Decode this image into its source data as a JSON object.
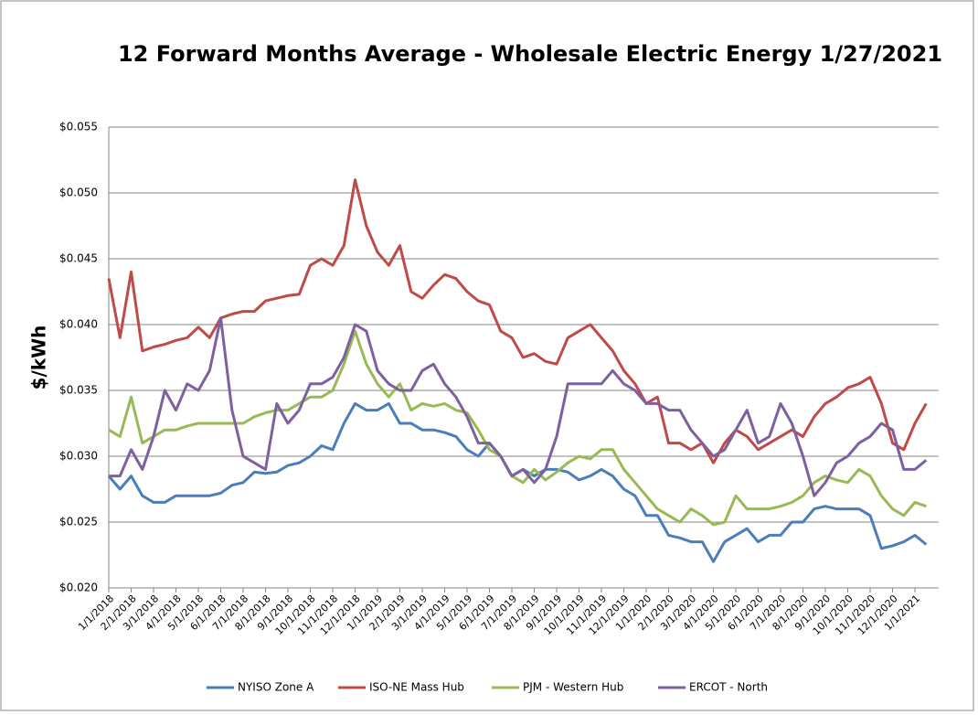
{
  "chart_data": {
    "type": "line",
    "title": "12 Forward Months Average - Wholesale Electric Energy 1/27/2021",
    "y_label": "$/kWh",
    "categories": [
      "1/1/2018",
      null,
      "2/1/2018",
      null,
      "3/1/2018",
      null,
      "4/1/2018",
      null,
      "5/1/2018",
      null,
      "6/1/2018",
      null,
      "7/1/2018",
      null,
      "8/1/2018",
      null,
      "9/1/2018",
      null,
      "10/1/2018",
      null,
      "11/1/2018",
      null,
      "12/1/2018",
      null,
      "1/1/2019",
      null,
      "2/1/2019",
      null,
      "3/1/2019",
      null,
      "4/1/2019",
      null,
      "5/1/2019",
      null,
      "6/1/2019",
      null,
      "7/1/2019",
      null,
      "8/1/2019",
      null,
      "9/1/2019",
      null,
      "10/1/2019",
      null,
      "11/1/2019",
      null,
      "12/1/2019",
      null,
      "1/1/2020",
      null,
      "2/1/2020",
      null,
      "3/1/2020",
      null,
      "4/1/2020",
      null,
      "5/1/2020",
      null,
      "6/1/2020",
      null,
      "7/1/2020",
      null,
      "8/1/2020",
      null,
      "9/1/2020",
      null,
      "10/1/2020",
      null,
      "11/1/2020",
      null,
      "12/1/2020",
      null,
      "1/1/2021",
      null
    ],
    "series": [
      {
        "name": "NYISO Zone A",
        "color": "#4a7ebb",
        "values": [
          0.0285,
          0.0275,
          0.0285,
          0.027,
          0.0265,
          0.0265,
          0.027,
          0.027,
          0.027,
          0.027,
          0.0272,
          0.0278,
          0.028,
          0.0288,
          0.0287,
          0.0288,
          0.0293,
          0.0295,
          0.03,
          0.0308,
          0.0305,
          0.0325,
          0.034,
          0.0335,
          0.0335,
          0.034,
          0.0325,
          0.0325,
          0.032,
          0.032,
          0.0318,
          0.0315,
          0.0305,
          0.03,
          0.031,
          0.03,
          0.0285,
          0.029,
          0.0285,
          0.029,
          0.029,
          0.0288,
          0.0282,
          0.0285,
          0.029,
          0.0285,
          0.0275,
          0.027,
          0.0255,
          0.0255,
          0.024,
          0.0238,
          0.0235,
          0.0235,
          0.022,
          0.0235,
          0.024,
          0.0245,
          0.0235,
          0.024,
          0.024,
          0.025,
          0.025,
          0.026,
          0.0262,
          0.026,
          0.026,
          0.026,
          0.0255,
          0.023,
          0.0232,
          0.0235,
          0.024,
          0.0233
        ]
      },
      {
        "name": "ISO-NE Mass Hub",
        "color": "#be4b48",
        "values": [
          0.0435,
          0.039,
          0.044,
          0.038,
          0.0383,
          0.0385,
          0.0388,
          0.039,
          0.0398,
          0.039,
          0.0405,
          0.0408,
          0.041,
          0.041,
          0.0418,
          0.042,
          0.0422,
          0.0423,
          0.0445,
          0.045,
          0.0445,
          0.046,
          0.051,
          0.0475,
          0.0455,
          0.0445,
          0.046,
          0.0425,
          0.042,
          0.043,
          0.0438,
          0.0435,
          0.0425,
          0.0418,
          0.0415,
          0.0395,
          0.039,
          0.0375,
          0.0378,
          0.0372,
          0.037,
          0.039,
          0.0395,
          0.04,
          0.039,
          0.038,
          0.0365,
          0.0355,
          0.034,
          0.0345,
          0.031,
          0.031,
          0.0305,
          0.031,
          0.0295,
          0.031,
          0.032,
          0.0315,
          0.0305,
          0.031,
          0.0315,
          0.032,
          0.0315,
          0.033,
          0.034,
          0.0345,
          0.0352,
          0.0355,
          0.036,
          0.034,
          0.031,
          0.0305,
          0.0325,
          0.034
        ]
      },
      {
        "name": "PJM - Western Hub",
        "color": "#98b954",
        "values": [
          0.032,
          0.0315,
          0.0345,
          0.031,
          0.0315,
          0.032,
          0.032,
          0.0323,
          0.0325,
          0.0325,
          0.0325,
          0.0325,
          0.0325,
          0.033,
          0.0333,
          0.0335,
          0.0335,
          0.034,
          0.0345,
          0.0345,
          0.035,
          0.037,
          0.0395,
          0.037,
          0.0355,
          0.0345,
          0.0355,
          0.0335,
          0.034,
          0.0338,
          0.034,
          0.0335,
          0.0333,
          0.032,
          0.0305,
          0.03,
          0.0285,
          0.028,
          0.029,
          0.0282,
          0.0288,
          0.0295,
          0.03,
          0.0298,
          0.0305,
          0.0305,
          0.029,
          0.028,
          0.027,
          0.026,
          0.0255,
          0.025,
          0.026,
          0.0255,
          0.0248,
          0.025,
          0.027,
          0.026,
          0.026,
          0.026,
          0.0262,
          0.0265,
          0.027,
          0.028,
          0.0285,
          0.0282,
          0.028,
          0.029,
          0.0285,
          0.027,
          0.026,
          0.0255,
          0.0265,
          0.0262
        ]
      },
      {
        "name": "ERCOT - North",
        "color": "#7d60a0",
        "values": [
          0.0285,
          0.0285,
          0.0305,
          0.029,
          0.0315,
          0.035,
          0.0335,
          0.0355,
          0.035,
          0.0365,
          0.0405,
          0.0335,
          0.03,
          0.0295,
          0.029,
          0.034,
          0.0325,
          0.0335,
          0.0355,
          0.0355,
          0.036,
          0.0375,
          0.04,
          0.0395,
          0.0365,
          0.0355,
          0.035,
          0.035,
          0.0365,
          0.037,
          0.0355,
          0.0345,
          0.033,
          0.031,
          0.031,
          0.03,
          0.0285,
          0.029,
          0.028,
          0.029,
          0.0315,
          0.0355,
          0.0355,
          0.0355,
          0.0355,
          0.0365,
          0.0355,
          0.035,
          0.034,
          0.034,
          0.0335,
          0.0335,
          0.032,
          0.031,
          0.03,
          0.0305,
          0.032,
          0.0335,
          0.031,
          0.0315,
          0.034,
          0.0325,
          0.03,
          0.027,
          0.028,
          0.0295,
          0.03,
          0.031,
          0.0315,
          0.0325,
          0.032,
          0.029,
          0.029,
          0.0297
        ]
      }
    ],
    "ylim": [
      0.02,
      0.055
    ],
    "yticks": [
      {
        "value": 0.02,
        "label": "$0.020"
      },
      {
        "value": 0.025,
        "label": "$0.025"
      },
      {
        "value": 0.03,
        "label": "$0.030"
      },
      {
        "value": 0.035,
        "label": "$0.035"
      },
      {
        "value": 0.04,
        "label": "$0.040"
      },
      {
        "value": 0.045,
        "label": "$0.045"
      },
      {
        "value": 0.05,
        "label": "$0.050"
      },
      {
        "value": 0.055,
        "label": "$0.055"
      }
    ],
    "grid": true,
    "legend": "bottom"
  }
}
